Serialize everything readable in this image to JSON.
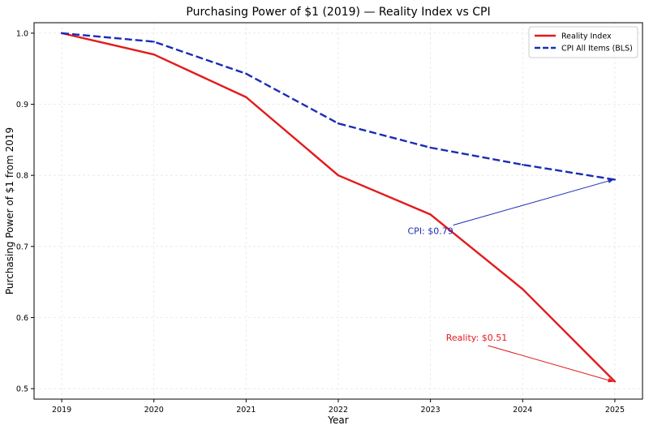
{
  "chart_data": {
    "type": "line",
    "title": "Purchasing Power of $1 (2019) — Reality Index vs CPI",
    "xlabel": "Year",
    "ylabel": "Purchasing Power of $1 from 2019",
    "x": [
      2019,
      2020,
      2021,
      2022,
      2023,
      2024,
      2025
    ],
    "xlim": [
      2018.7,
      2025.3
    ],
    "ylim": [
      0.4853,
      1.0147
    ],
    "y_ticks": [
      0.5,
      0.6,
      0.7,
      0.8,
      0.9,
      1.0
    ],
    "y_tick_labels": [
      "0.5",
      "0.6",
      "0.7",
      "0.8",
      "0.9",
      "1.0"
    ],
    "x_tick_labels": [
      "2019",
      "2020",
      "2021",
      "2022",
      "2023",
      "2024",
      "2025"
    ],
    "grid": true,
    "legend_position": "top-right",
    "series": [
      {
        "name": "Reality Index",
        "values": [
          1.0,
          0.97,
          0.91,
          0.8,
          0.745,
          0.64,
          0.51
        ],
        "color": "#e31a1c",
        "dash": "solid"
      },
      {
        "name": "CPI All Items (BLS)",
        "values": [
          1.0,
          0.988,
          0.943,
          0.873,
          0.839,
          0.815,
          0.794
        ],
        "color": "#1a2db4",
        "dash": "dashed"
      }
    ],
    "annotations": [
      {
        "text": "CPI: $0.79",
        "series": 1,
        "point": [
          2025,
          0.794
        ],
        "text_at": [
          2023,
          0.722
        ],
        "color": "#1a2db4"
      },
      {
        "text": "Reality: $0.51",
        "series": 0,
        "point": [
          2025,
          0.51
        ],
        "text_at": [
          2023.5,
          0.572
        ],
        "color": "#e31a1c"
      }
    ]
  }
}
